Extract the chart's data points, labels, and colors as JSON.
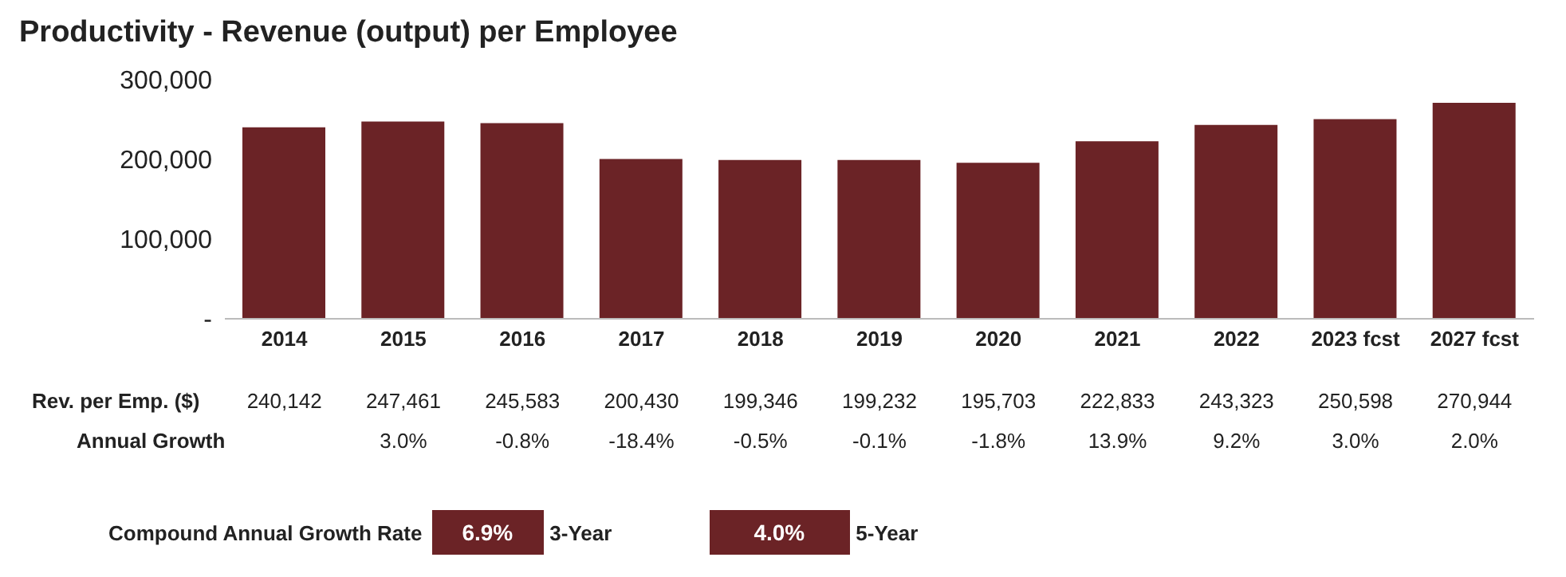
{
  "chart_data": {
    "type": "bar",
    "title": "Productivity - Revenue (output) per Employee",
    "categories": [
      "2014",
      "2015",
      "2016",
      "2017",
      "2018",
      "2019",
      "2020",
      "2021",
      "2022",
      "2023 fcst",
      "2027 fcst"
    ],
    "values": [
      240142,
      247461,
      245583,
      200430,
      199346,
      199232,
      195703,
      222833,
      243323,
      250598,
      270944
    ],
    "value_labels": [
      "240,142",
      "247,461",
      "245,583",
      "200,430",
      "199,346",
      "199,232",
      "195,703",
      "222,833",
      "243,323",
      "250,598",
      "270,944"
    ],
    "color": "#6b2326",
    "ylim": [
      0,
      300000
    ],
    "yticks": [
      {
        "value": 0,
        "label": "-"
      },
      {
        "value": 100000,
        "label": "100,000"
      },
      {
        "value": 200000,
        "label": "200,000"
      },
      {
        "value": 300000,
        "label": "300,000"
      }
    ],
    "grid": false,
    "annotations": [
      "Rev. per Emp. ($)",
      "Annual Growth",
      "3.0%",
      "-0.8%",
      "-18.4%",
      "-0.5%",
      "-0.1%",
      "-1.8%",
      "13.9%",
      "9.2%",
      "3.0%",
      "2.0%",
      "Compound Annual Growth Rate",
      "6.9%",
      "3-Year",
      "4.0%",
      "5-Year"
    ]
  }
}
